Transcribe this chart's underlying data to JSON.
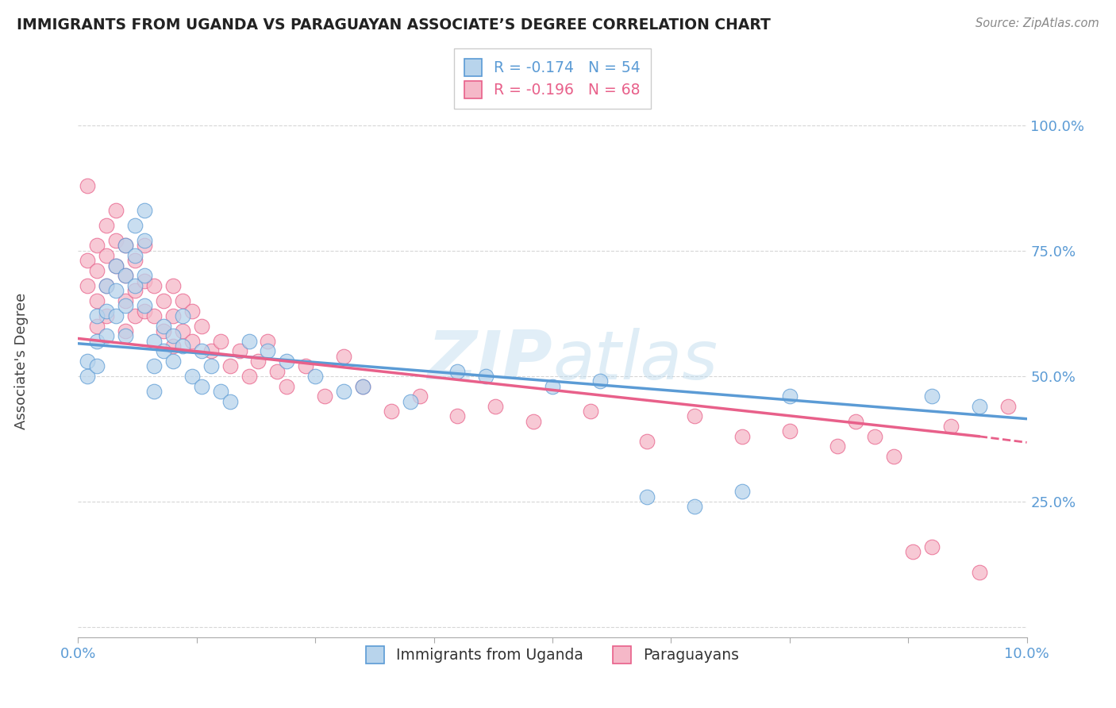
{
  "title": "IMMIGRANTS FROM UGANDA VS PARAGUAYAN ASSOCIATE’S DEGREE CORRELATION CHART",
  "source": "Source: ZipAtlas.com",
  "ylabel": "Associate's Degree",
  "yticks_labels": [
    "",
    "25.0%",
    "50.0%",
    "75.0%",
    "100.0%"
  ],
  "ytick_vals": [
    0.0,
    0.25,
    0.5,
    0.75,
    1.0
  ],
  "xtick_vals": [
    0.0,
    0.0125,
    0.025,
    0.0375,
    0.05,
    0.0625,
    0.075,
    0.0875,
    0.1
  ],
  "xrange": [
    0.0,
    0.1
  ],
  "yrange": [
    -0.02,
    1.08
  ],
  "legend_r1": "-0.174",
  "legend_n1": "54",
  "legend_r2": "-0.196",
  "legend_n2": "68",
  "color_blue_fill": "#b8d4ec",
  "color_pink_fill": "#f5b8c8",
  "color_blue_edge": "#5b9bd5",
  "color_pink_edge": "#e8608a",
  "color_line_blue": "#5b9bd5",
  "color_line_pink": "#e8608a",
  "watermark_color": "#d0e8f5",
  "series1_label": "Immigrants from Uganda",
  "series2_label": "Paraguayans",
  "uganda_x": [
    0.001,
    0.001,
    0.002,
    0.002,
    0.002,
    0.003,
    0.003,
    0.003,
    0.004,
    0.004,
    0.004,
    0.005,
    0.005,
    0.005,
    0.005,
    0.006,
    0.006,
    0.006,
    0.007,
    0.007,
    0.007,
    0.007,
    0.008,
    0.008,
    0.008,
    0.009,
    0.009,
    0.01,
    0.01,
    0.011,
    0.011,
    0.012,
    0.013,
    0.013,
    0.014,
    0.015,
    0.016,
    0.018,
    0.02,
    0.022,
    0.025,
    0.028,
    0.03,
    0.035,
    0.04,
    0.043,
    0.05,
    0.055,
    0.06,
    0.065,
    0.07,
    0.075,
    0.09,
    0.095
  ],
  "uganda_y": [
    0.53,
    0.5,
    0.62,
    0.57,
    0.52,
    0.68,
    0.63,
    0.58,
    0.72,
    0.67,
    0.62,
    0.76,
    0.7,
    0.64,
    0.58,
    0.8,
    0.74,
    0.68,
    0.83,
    0.77,
    0.7,
    0.64,
    0.57,
    0.52,
    0.47,
    0.6,
    0.55,
    0.58,
    0.53,
    0.62,
    0.56,
    0.5,
    0.55,
    0.48,
    0.52,
    0.47,
    0.45,
    0.57,
    0.55,
    0.53,
    0.5,
    0.47,
    0.48,
    0.45,
    0.51,
    0.5,
    0.48,
    0.49,
    0.26,
    0.24,
    0.27,
    0.46,
    0.46,
    0.44
  ],
  "paraguay_x": [
    0.001,
    0.001,
    0.001,
    0.002,
    0.002,
    0.002,
    0.002,
    0.003,
    0.003,
    0.003,
    0.003,
    0.004,
    0.004,
    0.004,
    0.005,
    0.005,
    0.005,
    0.005,
    0.006,
    0.006,
    0.006,
    0.007,
    0.007,
    0.007,
    0.008,
    0.008,
    0.009,
    0.009,
    0.01,
    0.01,
    0.01,
    0.011,
    0.011,
    0.012,
    0.012,
    0.013,
    0.014,
    0.015,
    0.016,
    0.017,
    0.018,
    0.019,
    0.02,
    0.021,
    0.022,
    0.024,
    0.026,
    0.028,
    0.03,
    0.033,
    0.036,
    0.04,
    0.044,
    0.048,
    0.054,
    0.06,
    0.065,
    0.07,
    0.075,
    0.08,
    0.082,
    0.084,
    0.086,
    0.088,
    0.09,
    0.092,
    0.095,
    0.098
  ],
  "paraguay_y": [
    0.88,
    0.73,
    0.68,
    0.76,
    0.71,
    0.65,
    0.6,
    0.8,
    0.74,
    0.68,
    0.62,
    0.83,
    0.77,
    0.72,
    0.76,
    0.7,
    0.65,
    0.59,
    0.73,
    0.67,
    0.62,
    0.76,
    0.69,
    0.63,
    0.68,
    0.62,
    0.65,
    0.59,
    0.68,
    0.62,
    0.56,
    0.65,
    0.59,
    0.63,
    0.57,
    0.6,
    0.55,
    0.57,
    0.52,
    0.55,
    0.5,
    0.53,
    0.57,
    0.51,
    0.48,
    0.52,
    0.46,
    0.54,
    0.48,
    0.43,
    0.46,
    0.42,
    0.44,
    0.41,
    0.43,
    0.37,
    0.42,
    0.38,
    0.39,
    0.36,
    0.41,
    0.38,
    0.34,
    0.15,
    0.16,
    0.4,
    0.11,
    0.44
  ],
  "line_blue_x0": 0.0,
  "line_blue_y0": 0.565,
  "line_blue_x1": 0.1,
  "line_blue_y1": 0.415,
  "line_pink_x0": 0.0,
  "line_pink_y0": 0.575,
  "line_pink_x1": 0.095,
  "line_pink_y1": 0.38,
  "line_pink_dash_x0": 0.095,
  "line_pink_dash_y0": 0.38,
  "line_pink_dash_x1": 0.1,
  "line_pink_dash_y1": 0.368
}
